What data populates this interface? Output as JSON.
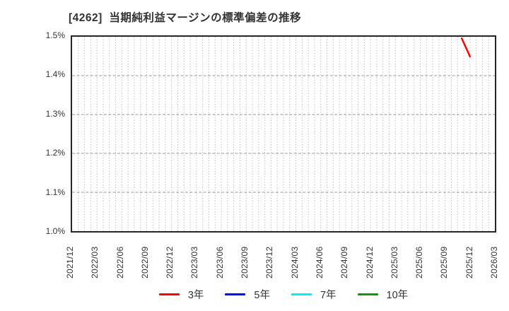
{
  "title": "[4262]  当期純利益マージンの標準偏差の推移",
  "chart_data": {
    "type": "line",
    "title": "[4262]  当期純利益マージンの標準偏差の推移",
    "xlabel": "",
    "ylabel": "",
    "ylim": [
      1.0,
      1.5
    ],
    "y_ticks": [
      "1.5%",
      "1.4%",
      "1.3%",
      "1.2%",
      "1.1%",
      "1.0%"
    ],
    "x_range": [
      "2021/12",
      "2026/03"
    ],
    "x_ticks": [
      "2021/12",
      "2022/03",
      "2022/06",
      "2022/09",
      "2022/12",
      "2023/03",
      "2023/06",
      "2023/09",
      "2023/12",
      "2024/03",
      "2024/06",
      "2024/09",
      "2024/12",
      "2025/03",
      "2025/06",
      "2025/09",
      "2025/12",
      "2026/03"
    ],
    "grid": true,
    "legend_position": "bottom-center",
    "series": [
      {
        "name": "3年",
        "color": "#ff0000",
        "points": [
          {
            "x": "2025/11",
            "y": 1.496
          },
          {
            "x": "2025/12",
            "y": 1.449
          }
        ]
      },
      {
        "name": "5年",
        "color": "#0000ff",
        "points": []
      },
      {
        "name": "7年",
        "color": "#00f0f0",
        "points": []
      },
      {
        "name": "10年",
        "color": "#149414",
        "points": []
      }
    ],
    "colors": {
      "border": "#262626",
      "vgrid": "#b3b3b3",
      "hgrid": "#999999",
      "text": "#333333"
    }
  }
}
